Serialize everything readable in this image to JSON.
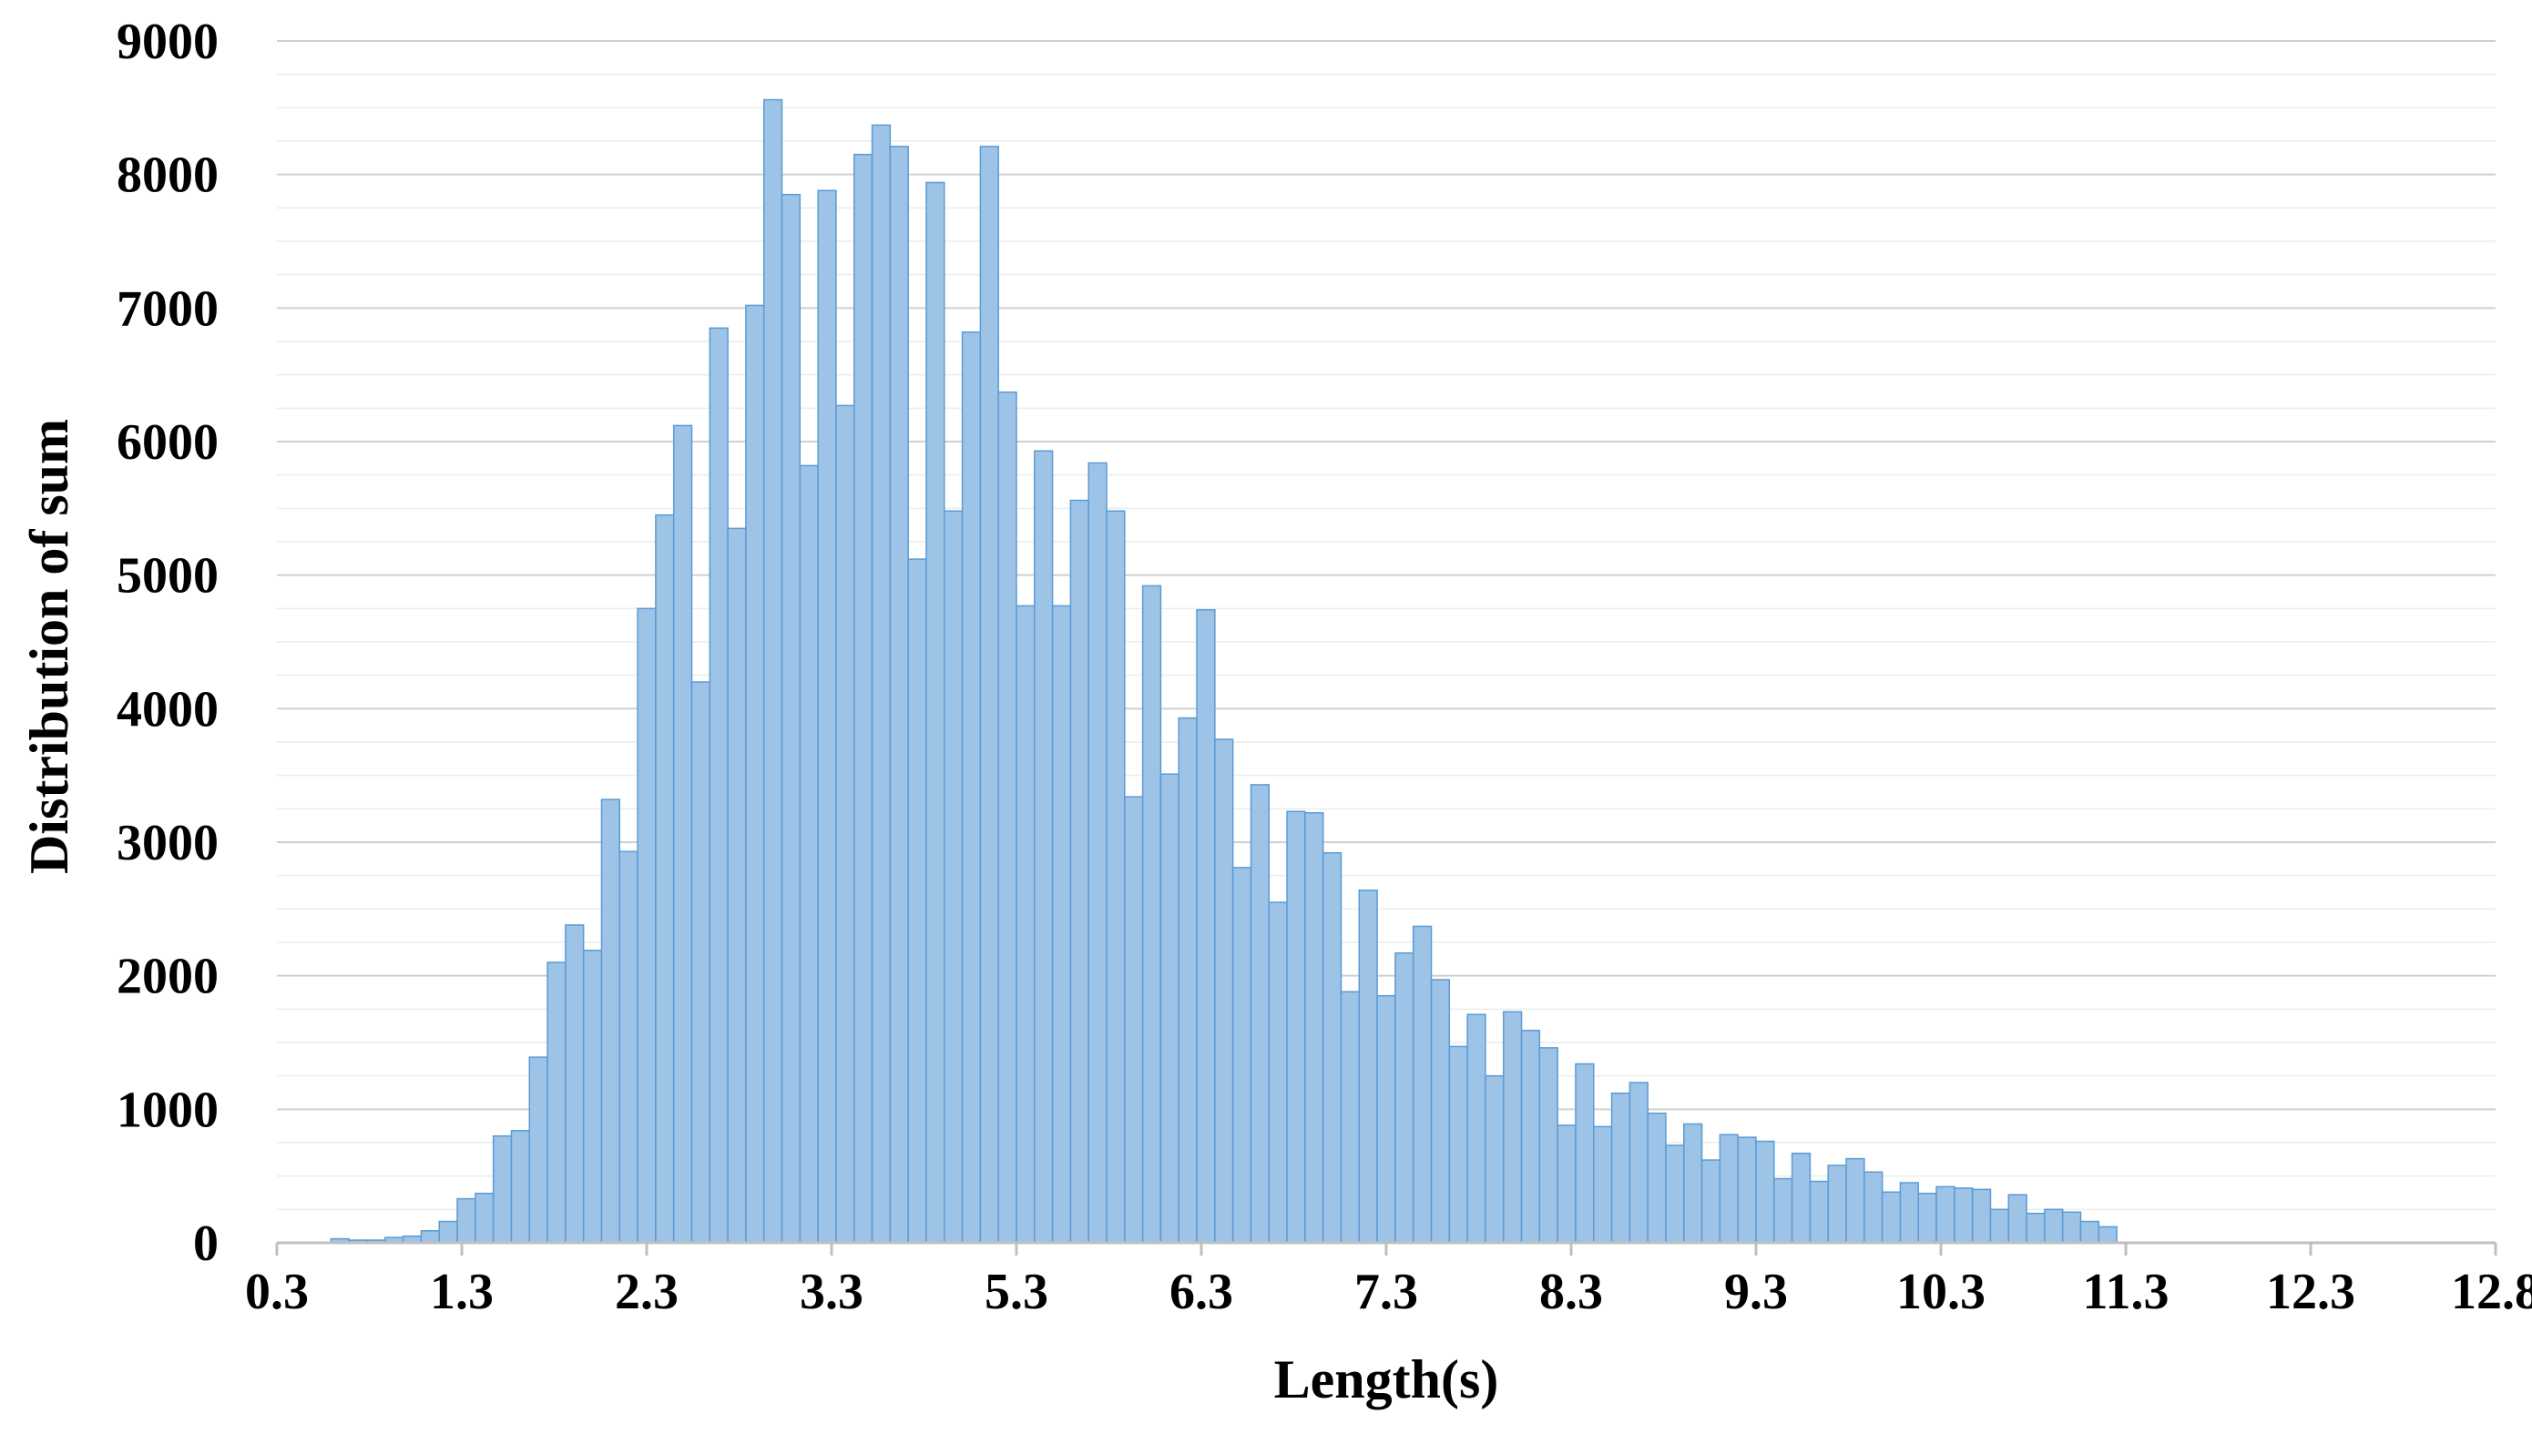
{
  "chart_data": {
    "type": "bar",
    "title": "",
    "xlabel": "Length(s)",
    "ylabel": "Distribution of sum",
    "ylim": [
      0,
      9000
    ],
    "xlim": [
      0.3,
      12.8
    ],
    "y_ticks": [
      "0",
      "1000",
      "2000",
      "3000",
      "4000",
      "5000",
      "6000",
      "7000",
      "8000",
      "9000"
    ],
    "x_tick_labels": [
      "0.3",
      "1.3",
      "2.3",
      "3.3",
      "5.3",
      "6.3",
      "7.3",
      "8.3",
      "9.3",
      "10.3",
      "11.3",
      "12.3",
      "12.8"
    ],
    "grid": true,
    "bar_color": "#9dc3e6",
    "bar_edge_color": "#5b9bd5",
    "series": [
      {
        "values": [
          0,
          0,
          0,
          30,
          20,
          20,
          40,
          50,
          90,
          160,
          330,
          370,
          800,
          840,
          1390,
          2100,
          2380,
          2190,
          3320,
          2930,
          4750,
          5450,
          6120,
          4200,
          6850,
          5350,
          7020,
          8560,
          7850,
          5820,
          7880,
          6270,
          8150,
          8370,
          8210,
          5120,
          7940,
          5480,
          6820,
          8210,
          6370,
          4770,
          5930,
          4770,
          5560,
          5840,
          5480,
          3340,
          4920,
          3510,
          3930,
          4740,
          3770,
          2810,
          3430,
          2550,
          3230,
          3220,
          2920,
          1880,
          2640,
          1850,
          2170,
          2370,
          1970,
          1470,
          1710,
          1250,
          1730,
          1590,
          1460,
          880,
          1340,
          870,
          1120,
          1200,
          970,
          730,
          890,
          620,
          810,
          790,
          760,
          480,
          670,
          460,
          580,
          630,
          530,
          380,
          450,
          370,
          420,
          410,
          400,
          250,
          360,
          220,
          250,
          230,
          160,
          120,
          0,
          0,
          0,
          0,
          0,
          0,
          0,
          0,
          0,
          0,
          0,
          0,
          0,
          0,
          0,
          0,
          0,
          0,
          0,
          0,
          0
        ]
      }
    ]
  }
}
